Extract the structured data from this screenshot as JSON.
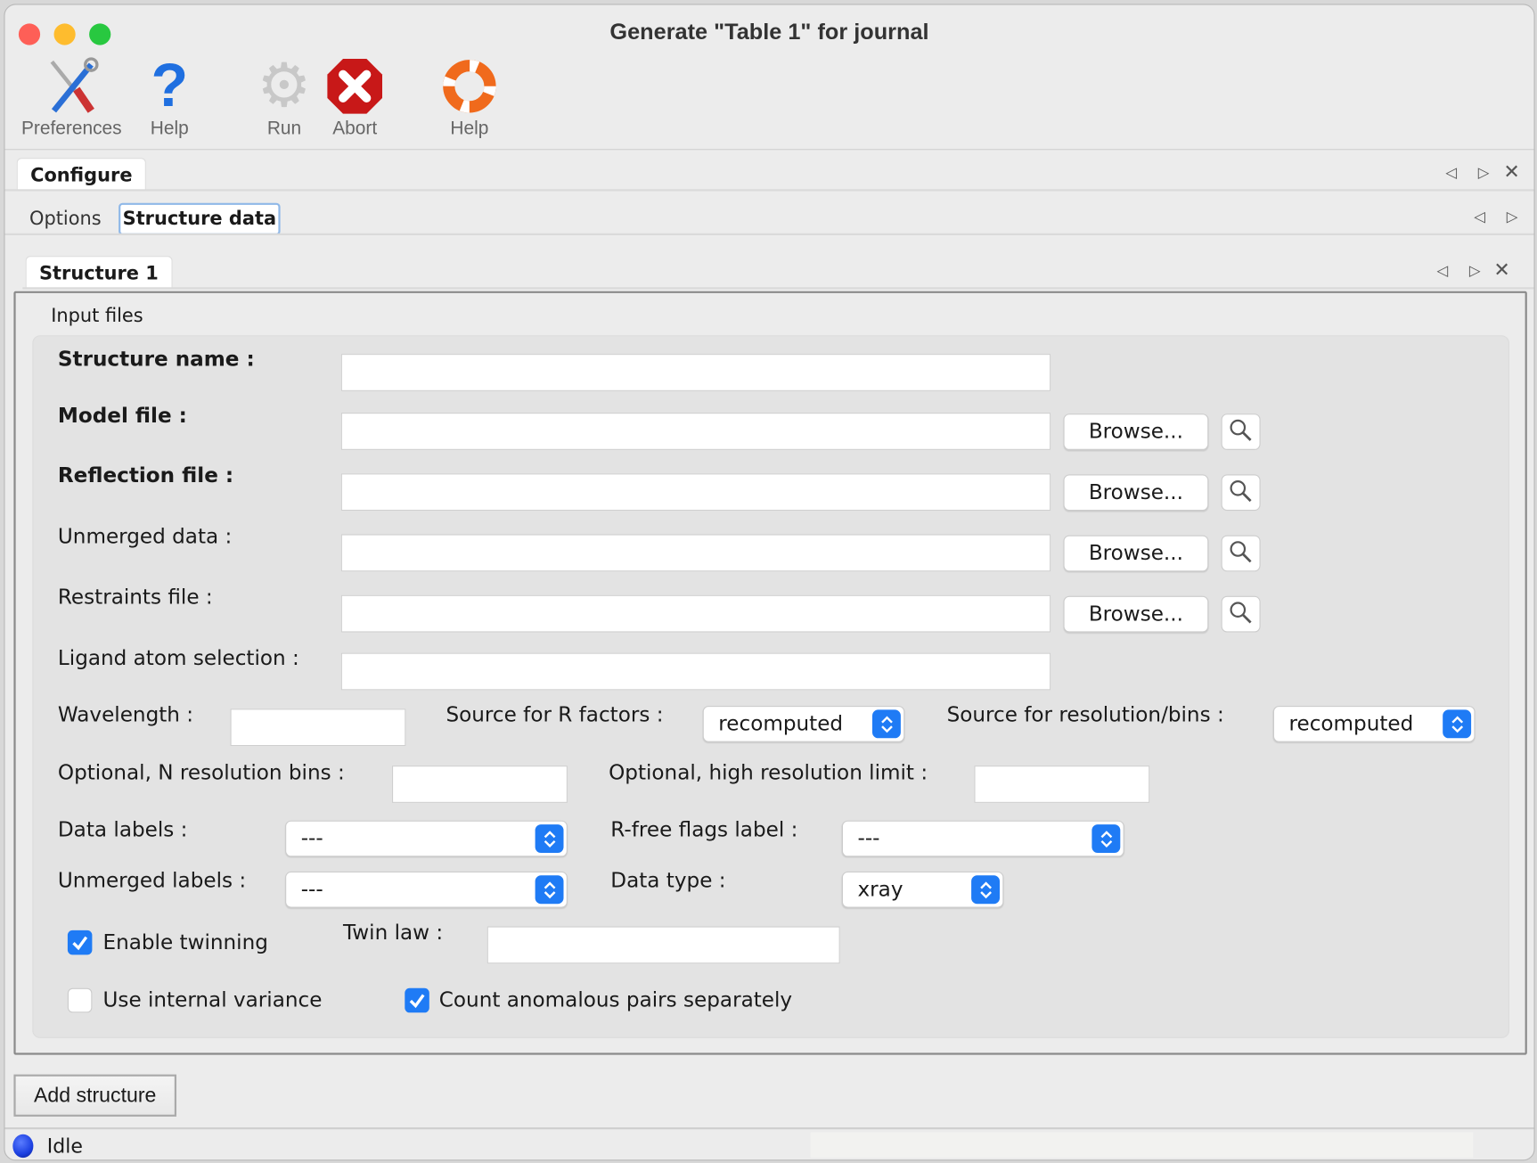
{
  "window": {
    "title": "Generate \"Table 1\" for journal"
  },
  "toolbar": [
    {
      "label": "Preferences",
      "icon": "preferences-tools-icon"
    },
    {
      "label": "Help",
      "icon": "question-mark-icon"
    },
    {
      "label": "Run",
      "icon": "gear-icon"
    },
    {
      "label": "Abort",
      "icon": "abort-stop-icon"
    },
    {
      "label": "Help",
      "icon": "lifebuoy-icon"
    }
  ],
  "tabs": {
    "main": "Configure",
    "sub": [
      "Options",
      "Structure data"
    ],
    "structure": "Structure 1"
  },
  "group_title": "Input files",
  "form": {
    "structure_name": {
      "label": "Structure name :",
      "value": ""
    },
    "model_file": {
      "label": "Model file :",
      "value": ""
    },
    "reflection_file": {
      "label": "Reflection file :",
      "value": ""
    },
    "unmerged_data": {
      "label": "Unmerged data :",
      "value": ""
    },
    "restraints_file": {
      "label": "Restraints file :",
      "value": ""
    },
    "ligand_selection": {
      "label": "Ligand atom selection :",
      "value": ""
    },
    "browse_label": "Browse...",
    "wavelength": {
      "label": "Wavelength :",
      "value": ""
    },
    "r_source": {
      "label": "Source for R factors :",
      "value": "recomputed"
    },
    "res_source": {
      "label": "Source for resolution/bins :",
      "value": "recomputed"
    },
    "n_bins": {
      "label": "Optional, N resolution bins :",
      "value": ""
    },
    "high_res": {
      "label": "Optional, high resolution limit :",
      "value": ""
    },
    "data_labels": {
      "label": "Data labels :",
      "value": "---"
    },
    "rfree_label": {
      "label": "R-free flags label :",
      "value": "---"
    },
    "unmerged_labels": {
      "label": "Unmerged labels :",
      "value": "---"
    },
    "data_type": {
      "label": "Data type :",
      "value": "xray"
    },
    "twinning": {
      "label": "Enable twinning",
      "checked": true
    },
    "twin_law": {
      "label": "Twin law :",
      "value": ""
    },
    "internal_variance": {
      "label": "Use internal variance",
      "checked": false
    },
    "anomalous": {
      "label": "Count anomalous pairs separately",
      "checked": true
    }
  },
  "add_structure": "Add structure",
  "status": {
    "text": "Idle",
    "color": "#1b3fe0"
  },
  "colors": {
    "accent": "#1f7bf5"
  }
}
